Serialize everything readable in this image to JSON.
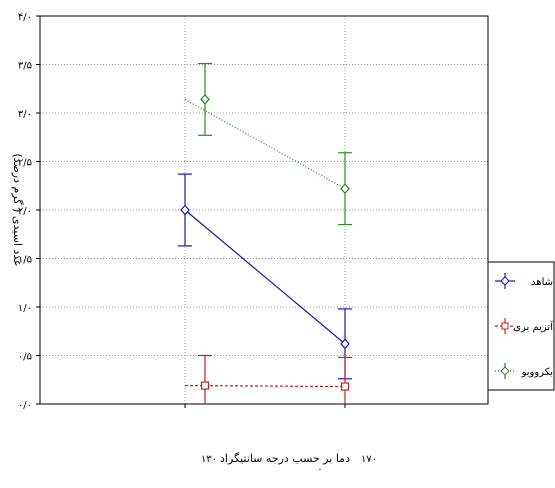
{
  "chart_data": {
    "type": "line",
    "title": "",
    "xlabel": "دما بر حسب درجه سانتیگراد",
    "ylabel": "عدد اسیدی ( گرم درصد)",
    "categories": [
      "۱۳۰",
      "۱۷۰"
    ],
    "ylim": [
      0,
      4
    ],
    "yticks": [
      {
        "value": 0,
        "label": "۰/۰"
      },
      {
        "value": 0.5,
        "label": "۰/۵"
      },
      {
        "value": 1,
        "label": "۱/۰"
      },
      {
        "value": 1.5,
        "label": "۱/۵"
      },
      {
        "value": 2,
        "label": "۲/۰"
      },
      {
        "value": 2.5,
        "label": "۲/۵"
      },
      {
        "value": 3,
        "label": "۳/۰"
      },
      {
        "value": 3.5,
        "label": "۳/۵"
      },
      {
        "value": 4,
        "label": "۴/۰"
      }
    ],
    "grid": true,
    "legend": "right",
    "series": [
      {
        "name": "شاهد",
        "color": "#1a1aa6",
        "marker": "diamond",
        "dash": "solid",
        "values": [
          2.0,
          0.62
        ],
        "err_low": [
          1.63,
          0.26
        ],
        "err_high": [
          2.37,
          0.98
        ]
      },
      {
        "name": "آنزیم بری",
        "color": "#cc1f1f",
        "marker": "square",
        "dash": "dashed",
        "values": [
          0.19,
          0.18
        ],
        "err_low": [
          -0.08,
          -0.09
        ],
        "err_high": [
          0.5,
          0.48
        ]
      },
      {
        "name": "بکرووبو",
        "color": "#2a8a2a",
        "marker": "diamond",
        "dash": "dotted",
        "values": [
          3.14,
          2.22
        ],
        "err_low": [
          2.77,
          1.85
        ],
        "err_high": [
          3.51,
          2.59
        ]
      }
    ]
  },
  "footer_mark": "."
}
